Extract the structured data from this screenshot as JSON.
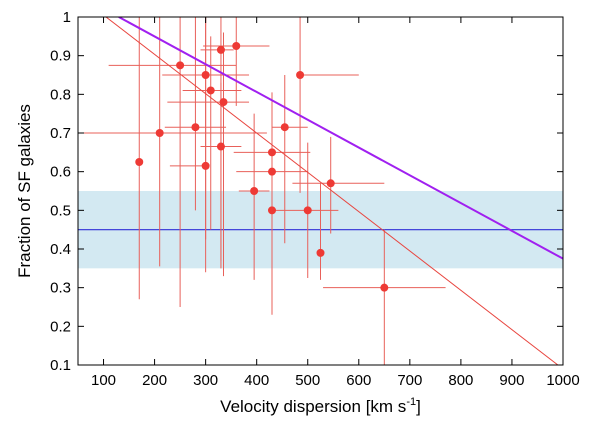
{
  "chart_data": {
    "type": "scatter",
    "xlabel": "Velocity dispersion [km s",
    "xlabel_sup": "-1",
    "xlabel_end": "]",
    "ylabel": "Fraction of SF galaxies",
    "xlim": [
      50,
      1000
    ],
    "ylim": [
      0.1,
      1.0
    ],
    "xticks": [
      "100",
      "200",
      "300",
      "400",
      "500",
      "600",
      "700",
      "800",
      "900",
      "1000"
    ],
    "yticks": [
      "0.1",
      "0.2",
      "0.3",
      "0.4",
      "0.5",
      "0.6",
      "0.7",
      "0.8",
      "0.9",
      "1"
    ],
    "grid": false,
    "points": [
      {
        "x": 170,
        "y": 0.625,
        "xerr": [
          0,
          0
        ],
        "yerr": [
          0.355,
          0.375
        ]
      },
      {
        "x": 210,
        "y": 0.7,
        "xerr": [
          160,
          210
        ],
        "yerr": [
          0.345,
          0.3
        ]
      },
      {
        "x": 250,
        "y": 0.875,
        "xerr": [
          140,
          110
        ],
        "yerr": [
          0.625,
          0.125
        ]
      },
      {
        "x": 280,
        "y": 0.715,
        "xerr": [
          60,
          60
        ],
        "yerr": [
          0.215,
          0.285
        ]
      },
      {
        "x": 300,
        "y": 0.615,
        "xerr": [
          70,
          0
        ],
        "yerr": [
          0.275,
          0.385
        ]
      },
      {
        "x": 300,
        "y": 0.85,
        "xerr": [
          85,
          85
        ],
        "yerr": [
          0.425,
          0.15
        ]
      },
      {
        "x": 310,
        "y": 0.81,
        "xerr": [
          55,
          60
        ],
        "yerr": [
          0.36,
          0.14
        ]
      },
      {
        "x": 330,
        "y": 0.665,
        "xerr": [
          40,
          40
        ],
        "yerr": [
          0.315,
          0.165
        ]
      },
      {
        "x": 330,
        "y": 0.915,
        "xerr": [
          40,
          25
        ],
        "yerr": [
          0.545,
          0.085
        ]
      },
      {
        "x": 335,
        "y": 0.78,
        "xerr": [
          110,
          50
        ],
        "yerr": [
          0.45,
          0.18
        ]
      },
      {
        "x": 360,
        "y": 0.925,
        "xerr": [
          65,
          65
        ],
        "yerr": [
          0.155,
          0.075
        ]
      },
      {
        "x": 395,
        "y": 0.55,
        "xerr": [
          30,
          30
        ],
        "yerr": [
          0.23,
          0.2
        ]
      },
      {
        "x": 430,
        "y": 0.65,
        "xerr": [
          75,
          75
        ],
        "yerr": [
          0.225,
          0.145
        ]
      },
      {
        "x": 430,
        "y": 0.6,
        "xerr": [
          70,
          70
        ],
        "yerr": [
          0.135,
          0.205
        ]
      },
      {
        "x": 430,
        "y": 0.5,
        "xerr": [
          0,
          70
        ],
        "yerr": [
          0.27,
          0.15
        ]
      },
      {
        "x": 455,
        "y": 0.715,
        "xerr": [
          25,
          45
        ],
        "yerr": [
          0.3,
          0.135
        ]
      },
      {
        "x": 485,
        "y": 0.85,
        "xerr": [
          0,
          115
        ],
        "yerr": [
          0.305,
          0.15
        ]
      },
      {
        "x": 500,
        "y": 0.5,
        "xerr": [
          0,
          60
        ],
        "yerr": [
          0.175,
          0.175
        ]
      },
      {
        "x": 525,
        "y": 0.39,
        "xerr": [
          0,
          0
        ],
        "yerr": [
          0.07,
          0.18
        ]
      },
      {
        "x": 545,
        "y": 0.57,
        "xerr": [
          75,
          105
        ],
        "yerr": [
          0.13,
          0.12
        ]
      },
      {
        "x": 650,
        "y": 0.3,
        "xerr": [
          120,
          120
        ],
        "yerr": [
          0.2,
          0.15
        ]
      }
    ],
    "band": {
      "y0": 0.35,
      "y1": 0.55,
      "color": "#d3e9f2"
    },
    "hline": {
      "y": 0.45,
      "color": "#2f2fd6"
    },
    "lines": [
      {
        "x0": 100,
        "y0": 1.005,
        "x1": 990,
        "y1": 0.1,
        "color": "#e8453f"
      },
      {
        "x0": 130,
        "y0": 1.0,
        "x1": 1000,
        "y1": 0.375,
        "color": "#a020f0"
      }
    ],
    "colors": {
      "points": "#ee3a35",
      "errorbars": "#e8605a"
    }
  }
}
